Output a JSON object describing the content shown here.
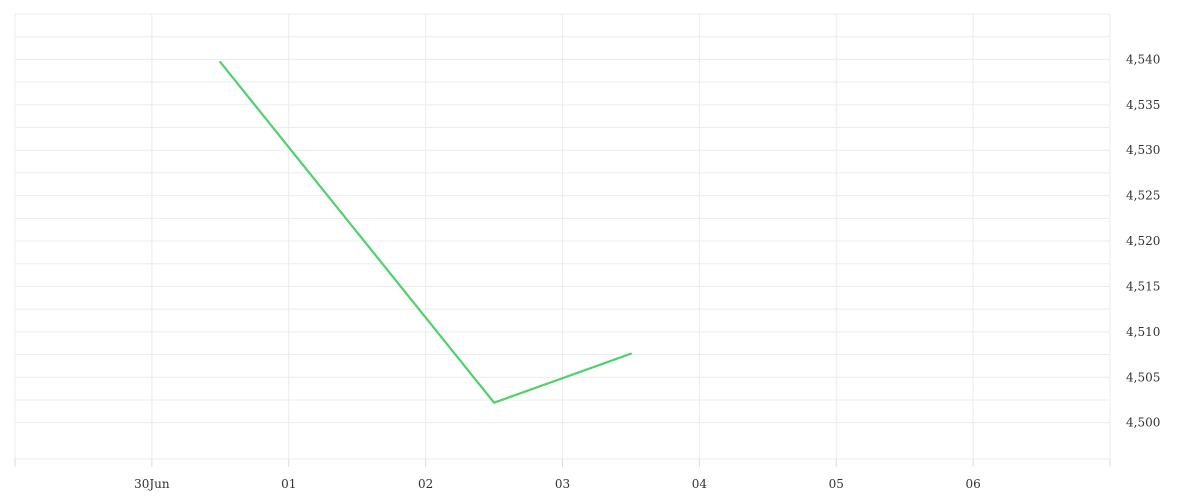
{
  "chart_data": {
    "type": "line",
    "title": "",
    "xlabel": "",
    "ylabel": "",
    "x_ticks": [
      "30Jun",
      "01",
      "02",
      "03",
      "04",
      "05",
      "06"
    ],
    "y_ticks": [
      "4,500",
      "4,505",
      "4,510",
      "4,515",
      "4,520",
      "4,525",
      "4,530",
      "4,535",
      "4,540"
    ],
    "ylim": [
      4496,
      4545
    ],
    "xlim": [
      "2025-06-29",
      "2025-07-07"
    ],
    "grid": true,
    "legend": "none",
    "series": [
      {
        "color": "#4fd16b",
        "points": [
          {
            "x": "2025-06-30T12:00",
            "y": 4539.7
          },
          {
            "x": "2025-07-02T12:00",
            "y": 4502.2
          },
          {
            "x": "2025-07-03T12:00",
            "y": 4507.6
          }
        ]
      }
    ]
  }
}
